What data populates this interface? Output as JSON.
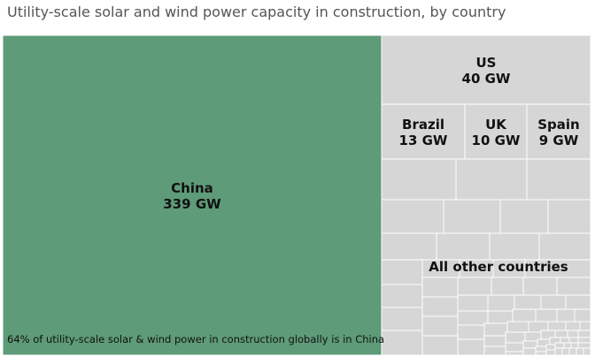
{
  "chart_data": {
    "type": "treemap",
    "title": "Utility-scale solar and wind power capacity in construction, by country",
    "unit": "GW",
    "items": [
      {
        "name": "China",
        "value": 339,
        "label": "339 GW"
      },
      {
        "name": "US",
        "value": 40,
        "label": "40 GW"
      },
      {
        "name": "Brazil",
        "value": 13,
        "label": "13 GW"
      },
      {
        "name": "UK",
        "value": 10,
        "label": "10 GW"
      },
      {
        "name": "Spain",
        "value": 9,
        "label": "9 GW"
      }
    ],
    "other_label": "All other countries",
    "annotation": "64% of utility-scale solar & wind power in construction globally is in China"
  },
  "colors": {
    "highlight": "#5e9b78",
    "other": "#d6d6d6",
    "border": "#ffffff",
    "text": "#111111"
  }
}
